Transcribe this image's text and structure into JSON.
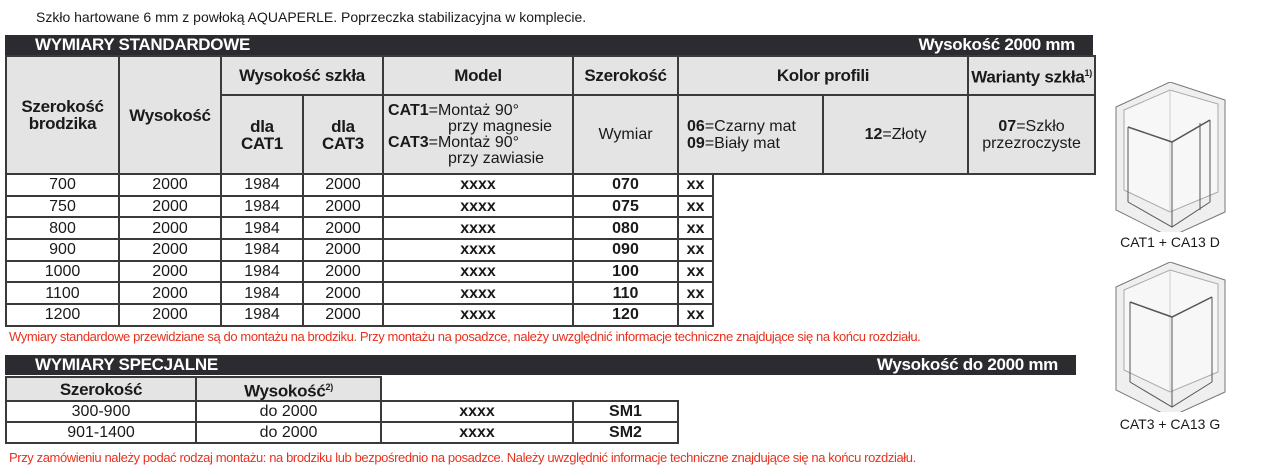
{
  "intro": "Szkło hartowane 6 mm z powłoką AQUAPERLE. Poprzeczka stabilizacyjna w komplecie.",
  "standard": {
    "title": "WYMIARY STANDARDOWE",
    "height_label": "Wysokość 2000 mm",
    "headers": {
      "tray_width": "Szerokość brodzika",
      "height": "Wysokość",
      "glass_height": "Wysokość szkła",
      "for_cat1": "dla CAT1",
      "for_cat3": "dla CAT3",
      "model": "Model",
      "width": "Szerokość",
      "color": "Kolor profili",
      "glass": "Warianty szkła",
      "glass_sup": "1)",
      "dimension": "Wymiar",
      "model_cat1_code": "CAT1",
      "model_cat1_text": "=Montaż 90°",
      "model_cat1_text2": "przy magnesie",
      "model_cat3_code": "CAT3",
      "model_cat3_text": "=Montaż 90°",
      "model_cat3_text2": "przy zawiasie",
      "color_06_code": "06",
      "color_06": "=Czarny mat",
      "color_09_code": "09",
      "color_09": "=Biały mat",
      "color_12_code": "12",
      "color_12": "=Złoty",
      "glass_07_code": "07",
      "glass_07": "=Szkło przezroczyste"
    },
    "rows": [
      {
        "tray": "700",
        "height": "2000",
        "cat1": "1984",
        "cat3": "2000",
        "model": "xxxx",
        "width": "070",
        "color": "xx"
      },
      {
        "tray": "750",
        "height": "2000",
        "cat1": "1984",
        "cat3": "2000",
        "model": "xxxx",
        "width": "075",
        "color": "xx"
      },
      {
        "tray": "800",
        "height": "2000",
        "cat1": "1984",
        "cat3": "2000",
        "model": "xxxx",
        "width": "080",
        "color": "xx"
      },
      {
        "tray": "900",
        "height": "2000",
        "cat1": "1984",
        "cat3": "2000",
        "model": "xxxx",
        "width": "090",
        "color": "xx"
      },
      {
        "tray": "1000",
        "height": "2000",
        "cat1": "1984",
        "cat3": "2000",
        "model": "xxxx",
        "width": "100",
        "color": "xx"
      },
      {
        "tray": "1100",
        "height": "2000",
        "cat1": "1984",
        "cat3": "2000",
        "model": "xxxx",
        "width": "110",
        "color": "xx"
      },
      {
        "tray": "1200",
        "height": "2000",
        "cat1": "1984",
        "cat3": "2000",
        "model": "xxxx",
        "width": "120",
        "color": "xx"
      }
    ],
    "note": "Wymiary standardowe przewidziane są do montażu na brodziku. Przy montażu na posadzce, należy uwzględnić informacje techniczne znajdujące się na końcu rozdziału."
  },
  "special": {
    "title": "WYMIARY SPECJALNE",
    "height_label": "Wysokość do 2000 mm",
    "headers": {
      "width": "Szerokość",
      "height": "Wysokość",
      "height_sup": "2)"
    },
    "rows": [
      {
        "width": "300-900",
        "height": "do 2000",
        "model": "xxxx",
        "code": "SM1"
      },
      {
        "width": "901-1400",
        "height": "do 2000",
        "model": "xxxx",
        "code": "SM2"
      }
    ],
    "note": "Przy zamówieniu należy podać rodzaj montażu: na brodziku lub bezpośrednio na posadzce. Należy uwzględnić informacje techniczne znajdujące się na końcu rozdziału."
  },
  "images": [
    {
      "caption": "CAT1 + CA13 D"
    },
    {
      "caption": "CAT3 + CA13 G"
    }
  ]
}
